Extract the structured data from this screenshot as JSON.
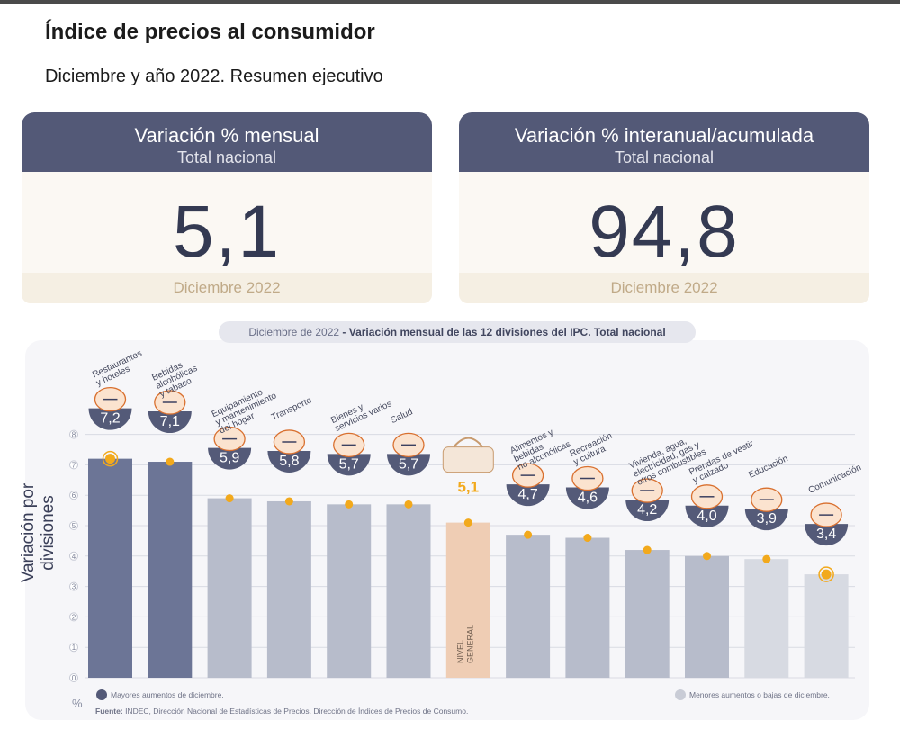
{
  "header": {
    "title": "Índice de precios al consumidor",
    "subtitle": "Diciembre y año 2022. Resumen ejecutivo"
  },
  "cards": [
    {
      "title": "Variación % mensual",
      "subtitle": "Total nacional",
      "value": "5,1",
      "period": "Diciembre 2022"
    },
    {
      "title": "Variación % interanual/acumulada",
      "subtitle": "Total nacional",
      "value": "94,8",
      "period": "Diciembre 2022"
    }
  ],
  "chart_caption": {
    "period": "Diciembre de 2022",
    "separator": " - ",
    "text": "Variación mensual de las 12 divisiones del IPC. Total nacional"
  },
  "chart_data": {
    "type": "bar",
    "title": "",
    "xlabel": "",
    "ylabel": "Variación por divisiones",
    "unit": "%",
    "ylim": [
      0,
      8
    ],
    "yticks": [
      "0",
      "1",
      "2",
      "3",
      "4",
      "5",
      "6",
      "7",
      "8"
    ],
    "grid": true,
    "categories": [
      [
        "Restaurantes",
        "y hoteles"
      ],
      [
        "Bebidas",
        "alcohólicas",
        "y tabaco"
      ],
      [
        "Equipamiento",
        "y mantenimiento",
        "del hogar"
      ],
      [
        "Transporte"
      ],
      [
        "Bienes y",
        "servicios varios"
      ],
      [
        "Salud"
      ],
      [
        "NIVEL",
        "GENERAL"
      ],
      [
        "Alimentos y",
        "bebidas",
        "no alcohólicas"
      ],
      [
        "Recreación",
        "y cultura"
      ],
      [
        "Vivienda, agua,",
        "electricidad, gas y",
        "otros combustibles"
      ],
      [
        "Prendas de vestir",
        "y calzado"
      ],
      [
        "Educación"
      ],
      [
        "Comunicación"
      ]
    ],
    "values": [
      7.2,
      7.1,
      5.9,
      5.8,
      5.7,
      5.7,
      5.1,
      4.7,
      4.6,
      4.2,
      4.0,
      3.9,
      3.4
    ],
    "value_labels": [
      "7,2",
      "7,1",
      "5,9",
      "5,8",
      "5,7",
      "5,7",
      "5,1",
      "4,7",
      "4,6",
      "4,2",
      "4,0",
      "3,9",
      "3,4"
    ],
    "groups": [
      "high",
      "high",
      "mid",
      "mid",
      "mid",
      "mid",
      "general",
      "mid",
      "mid",
      "mid",
      "mid",
      "low",
      "low"
    ],
    "highlighted": [
      0,
      12
    ],
    "colors": {
      "high": "#6c7596",
      "mid": "#b7bccb",
      "general": "#efcdb4",
      "low": "#d7dae2",
      "badge": "#545a78",
      "dot": "#f2a91c",
      "general_value": "#f2a91c",
      "axis_text": "#7a7f95"
    },
    "icons": [
      "restaurant-icon",
      "wine-icon",
      "home-appliance-icon",
      "car-icon",
      "scissors-icon",
      "health-cross-icon",
      "shopping-basket-icon",
      "food-icon",
      "recreation-icon",
      "lightbulb-icon",
      "tshirt-icon",
      "book-icon",
      "phone-icon"
    ],
    "legend": [
      {
        "label": "Mayores aumentos de diciembre.",
        "color": "#545a78",
        "position": "bottom-left"
      },
      {
        "label": "Menores aumentos o bajas de diciembre.",
        "color": "#c9ccd6",
        "position": "bottom-right"
      }
    ]
  },
  "source": {
    "label": "Fuente:",
    "text": "INDEC, Dirección Nacional de Estadísticas de Precios. Dirección de Índices de Precios de Consumo."
  }
}
